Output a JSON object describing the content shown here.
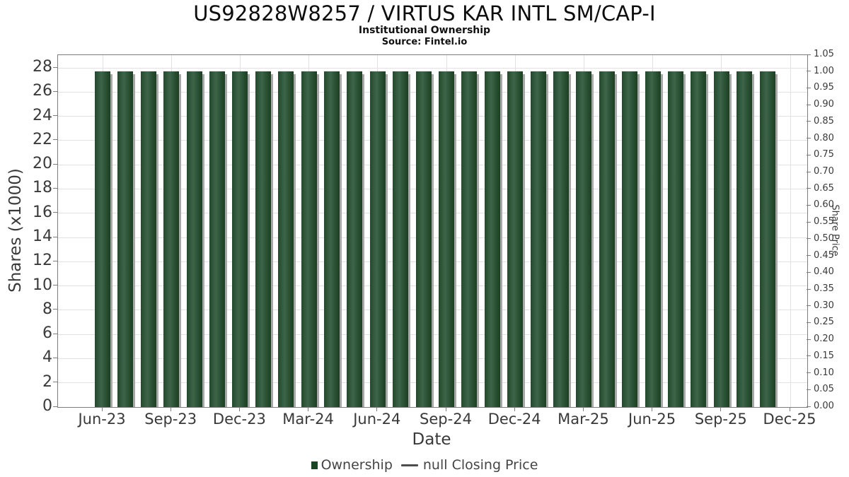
{
  "header": {
    "title": "US92828W8257 / VIRTUS KAR INTL SM/CAP-I",
    "subtitle": "Institutional Ownership",
    "source": "Source: Fintel.io"
  },
  "chart_data": {
    "type": "bar",
    "title": "US92828W8257 / VIRTUS KAR INTL SM/CAP-I",
    "subtitle": "Institutional Ownership",
    "source": "Source: Fintel.io",
    "xlabel": "Date",
    "ylabel_left": "Shares (x1000)",
    "ylabel_right": "Share Price",
    "x": [
      "Jun-23",
      "Jul-23",
      "Aug-23",
      "Sep-23",
      "Oct-23",
      "Nov-23",
      "Dec-23",
      "Jan-24",
      "Feb-24",
      "Mar-24",
      "Apr-24",
      "May-24",
      "Jun-24",
      "Jul-24",
      "Aug-24",
      "Sep-24",
      "Oct-24",
      "Nov-24",
      "Dec-24",
      "Jan-25",
      "Feb-25",
      "Mar-25",
      "Apr-25",
      "May-25",
      "Jun-25",
      "Jul-25",
      "Aug-25",
      "Sep-25",
      "Oct-25",
      "Nov-25"
    ],
    "series": [
      {
        "name": "Ownership",
        "type": "bar",
        "unit": "x1000 shares",
        "values": [
          27.7,
          27.7,
          27.7,
          27.7,
          27.7,
          27.7,
          27.7,
          27.7,
          27.7,
          27.7,
          27.7,
          27.7,
          27.7,
          27.7,
          27.7,
          27.7,
          27.7,
          27.7,
          27.7,
          27.7,
          27.7,
          27.7,
          27.7,
          27.7,
          27.7,
          27.7,
          27.7,
          27.7,
          27.7,
          27.7
        ]
      },
      {
        "name": "null Closing Price",
        "type": "line",
        "values": [],
        "all_null": true
      }
    ],
    "x_ticks": [
      "Jun-23",
      "Sep-23",
      "Dec-23",
      "Mar-24",
      "Jun-24",
      "Sep-24",
      "Dec-24",
      "Mar-25",
      "Jun-25",
      "Sep-25",
      "Dec-25"
    ],
    "left_axis": {
      "min": 0,
      "max": 29.05,
      "ticks": [
        0,
        2,
        4,
        6,
        8,
        10,
        12,
        14,
        16,
        18,
        20,
        22,
        24,
        26,
        28
      ]
    },
    "right_axis": {
      "min": 0,
      "max": 1.05,
      "ticks": [
        "0.00",
        "0.05",
        "0.10",
        "0.15",
        "0.20",
        "0.25",
        "0.30",
        "0.35",
        "0.40",
        "0.45",
        "0.50",
        "0.55",
        "0.60",
        "0.65",
        "0.70",
        "0.75",
        "0.80",
        "0.85",
        "0.90",
        "0.95",
        "1.00",
        "1.05"
      ]
    },
    "grid": true,
    "legend_position": "bottom"
  },
  "legend": {
    "items": [
      {
        "label": "Ownership",
        "marker": "square"
      },
      {
        "label": "null Closing Price",
        "marker": "line"
      }
    ]
  },
  "colors": {
    "bar_dark": "#1c3d24",
    "bar_mid": "#3e6449",
    "bar_shadow": "#a8a8a8",
    "legend_square": "#1b4423",
    "legend_line": "#4d4d4d",
    "gridline": "#e2e2e2",
    "axis": "#7d7d7d",
    "text": "#3a3a3a"
  }
}
